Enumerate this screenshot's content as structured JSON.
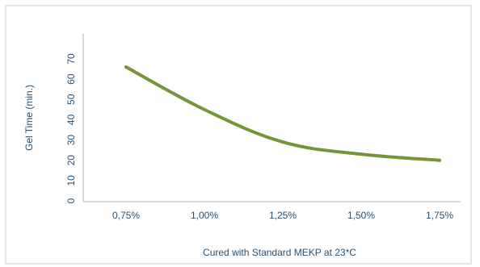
{
  "chart_data": {
    "type": "line",
    "categories": [
      "0,75%",
      "1,00%",
      "1,25%",
      "1,50%",
      "1,75%"
    ],
    "series": [
      {
        "values": [
          66,
          45,
          29,
          23,
          20
        ]
      }
    ],
    "xlabel": "Cured with Standard MEKP at 23*C",
    "ylabel": "Gel Time (min.)",
    "ylim": [
      0,
      70
    ],
    "yticks": [
      0,
      10,
      20,
      30,
      40,
      50,
      60,
      70
    ],
    "grid": false,
    "line_color": "#78943a",
    "axis_color": "#d7dadc",
    "text_color": "#2b4f6e"
  }
}
